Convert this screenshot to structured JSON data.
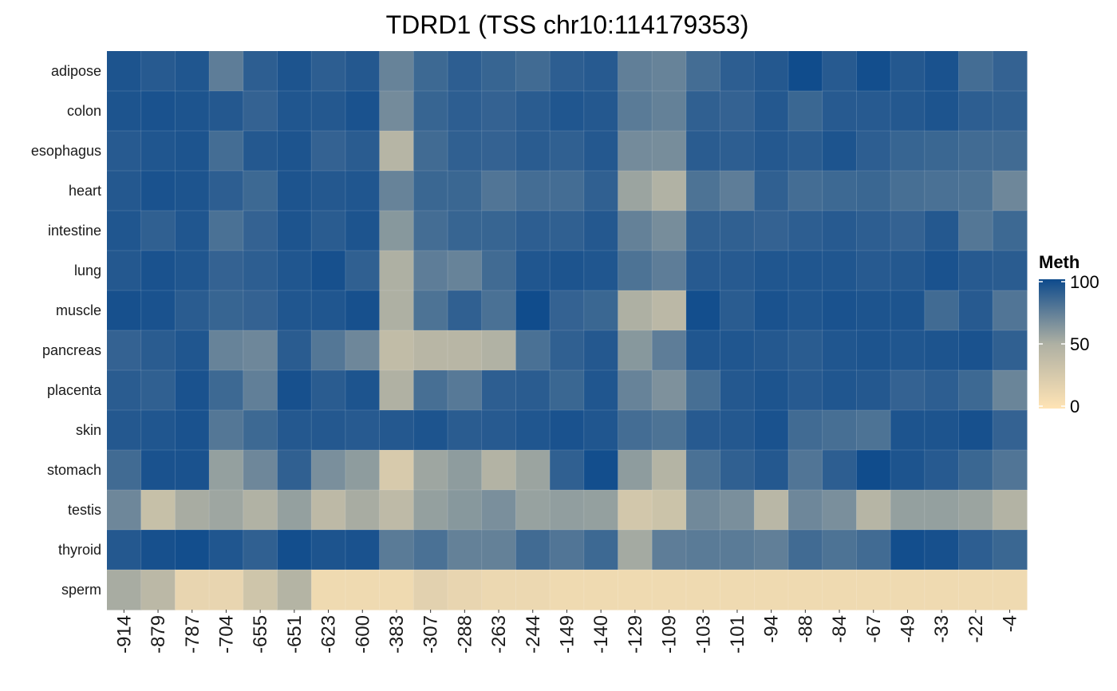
{
  "chart_data": {
    "type": "heatmap",
    "title": "TDRD1 (TSS chr10:114179353)",
    "xlabel": "",
    "ylabel": "",
    "x": [
      "-914",
      "-879",
      "-787",
      "-704",
      "-655",
      "-651",
      "-623",
      "-600",
      "-383",
      "-307",
      "-288",
      "-263",
      "-244",
      "-149",
      "-140",
      "-129",
      "-109",
      "-103",
      "-101",
      "-94",
      "-88",
      "-84",
      "-67",
      "-49",
      "-33",
      "-22",
      "-4"
    ],
    "y": [
      "adipose",
      "colon",
      "esophagus",
      "heart",
      "intestine",
      "lung",
      "muscle",
      "pancreas",
      "placenta",
      "skin",
      "stomach",
      "testis",
      "thyroid",
      "sperm"
    ],
    "values": [
      [
        95,
        92,
        94,
        75,
        90,
        95,
        90,
        93,
        72,
        85,
        90,
        87,
        84,
        90,
        92,
        74,
        72,
        83,
        90,
        93,
        99,
        92,
        98,
        93,
        96,
        83,
        88
      ],
      [
        95,
        96,
        95,
        93,
        88,
        94,
        93,
        96,
        68,
        87,
        90,
        88,
        91,
        94,
        93,
        76,
        73,
        89,
        88,
        93,
        86,
        92,
        92,
        93,
        95,
        90,
        89
      ],
      [
        92,
        94,
        95,
        83,
        93,
        95,
        88,
        91,
        45,
        84,
        89,
        88,
        91,
        89,
        93,
        68,
        67,
        91,
        90,
        93,
        91,
        95,
        90,
        87,
        86,
        84,
        84
      ],
      [
        93,
        96,
        95,
        90,
        85,
        95,
        93,
        94,
        72,
        86,
        86,
        79,
        83,
        83,
        89,
        56,
        48,
        80,
        75,
        89,
        83,
        85,
        86,
        82,
        81,
        80,
        70
      ],
      [
        94,
        89,
        94,
        81,
        88,
        95,
        91,
        95,
        62,
        83,
        87,
        87,
        90,
        89,
        93,
        73,
        67,
        89,
        89,
        88,
        90,
        92,
        90,
        88,
        93,
        78,
        85
      ],
      [
        93,
        96,
        94,
        88,
        90,
        94,
        97,
        89,
        50,
        75,
        72,
        84,
        94,
        95,
        94,
        80,
        75,
        92,
        92,
        94,
        94,
        94,
        92,
        93,
        96,
        92,
        91
      ],
      [
        97,
        96,
        91,
        87,
        88,
        94,
        94,
        97,
        50,
        80,
        89,
        81,
        99,
        88,
        86,
        50,
        42,
        98,
        91,
        96,
        94,
        96,
        95,
        95,
        84,
        92,
        79
      ],
      [
        88,
        91,
        94,
        72,
        70,
        91,
        78,
        70,
        38,
        44,
        44,
        48,
        81,
        89,
        93,
        62,
        75,
        94,
        94,
        93,
        91,
        94,
        95,
        94,
        95,
        96,
        89
      ],
      [
        91,
        89,
        96,
        85,
        74,
        97,
        91,
        95,
        49,
        82,
        77,
        90,
        91,
        86,
        94,
        72,
        65,
        82,
        93,
        95,
        92,
        94,
        93,
        88,
        90,
        85,
        71
      ],
      [
        93,
        94,
        96,
        78,
        85,
        93,
        93,
        92,
        93,
        95,
        91,
        92,
        94,
        96,
        94,
        83,
        80,
        92,
        93,
        96,
        84,
        82,
        80,
        95,
        95,
        97,
        88
      ],
      [
        84,
        96,
        96,
        58,
        70,
        89,
        66,
        60,
        25,
        55,
        60,
        47,
        56,
        89,
        98,
        60,
        46,
        81,
        89,
        93,
        79,
        90,
        99,
        95,
        92,
        86,
        79
      ],
      [
        70,
        35,
        52,
        55,
        48,
        58,
        41,
        52,
        40,
        58,
        62,
        66,
        57,
        59,
        58,
        28,
        32,
        69,
        66,
        43,
        70,
        66,
        45,
        58,
        58,
        56,
        47
      ],
      [
        93,
        97,
        98,
        94,
        89,
        98,
        95,
        96,
        76,
        81,
        73,
        73,
        84,
        79,
        85,
        53,
        75,
        76,
        76,
        74,
        84,
        80,
        84,
        98,
        97,
        90,
        86
      ],
      [
        52,
        42,
        14,
        14,
        30,
        46,
        10,
        10,
        10,
        18,
        14,
        12,
        12,
        10,
        10,
        10,
        10,
        10,
        10,
        10,
        10,
        10,
        10,
        10,
        10,
        10,
        10
      ]
    ],
    "colorbar": {
      "title": "Meth",
      "ticks": [
        0,
        50,
        100
      ],
      "range": [
        0,
        100
      ],
      "colors": {
        "low": "#FFE4B5",
        "mid": "#AEB0A3",
        "high": "#0D4A8C"
      }
    },
    "grid": true,
    "legend_position": "right"
  }
}
